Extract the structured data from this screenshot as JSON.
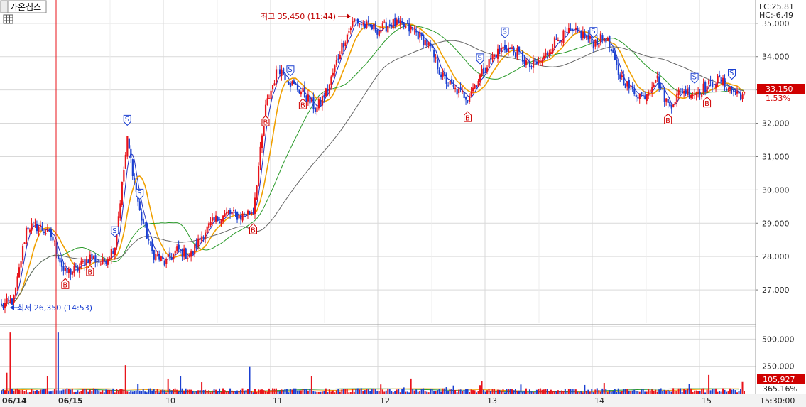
{
  "toolbar": {
    "title_button": "가온칩스"
  },
  "indicators": {
    "lc": "LC:25.81",
    "hc": "HC:-6.49",
    "lc_color": "#d00000",
    "hc_color": "#1a4fd0"
  },
  "annotations": {
    "high": "최고 35,450 (11:44)",
    "low": "최저 26,350 (14:53)"
  },
  "price_box": {
    "price": "33,150",
    "change": "1.53%",
    "color": "#d00000"
  },
  "volume_box": {
    "volume": "105,927",
    "percent": "365.16%"
  },
  "colors": {
    "up": "#e8141b",
    "down": "#1a3fd1",
    "ma_fast": "#1f2fc0",
    "ma_orange": "#f0a000",
    "ma_green": "#2a9a2a",
    "ma_gray": "#666666",
    "grid": "#d9d9d9"
  },
  "chart_data": [
    {
      "type": "candlestick",
      "title": "",
      "y_ticks": [
        "35,000",
        "34,000",
        "33,000",
        "32,000",
        "31,000",
        "30,000",
        "29,000",
        "28,000",
        "27,000"
      ],
      "ylim": [
        26000,
        35700
      ],
      "x_labels": [
        "06/14",
        "06/15",
        "10",
        "11",
        "12",
        "13",
        "14",
        "15",
        "15:30:00"
      ],
      "high": 35450,
      "low": 26350,
      "last": 33150,
      "shape": [
        [
          0,
          26500
        ],
        [
          1,
          26700
        ],
        [
          2,
          28900
        ],
        [
          3,
          28900
        ],
        [
          4,
          28600
        ],
        [
          5,
          27500
        ],
        [
          6,
          27600
        ],
        [
          7,
          28000
        ],
        [
          8,
          27800
        ],
        [
          9,
          28300
        ],
        [
          10,
          31500
        ],
        [
          11,
          29300
        ],
        [
          12,
          28100
        ],
        [
          13,
          27800
        ],
        [
          14,
          28200
        ],
        [
          15,
          28000
        ],
        [
          16,
          28700
        ],
        [
          17,
          29100
        ],
        [
          18,
          29300
        ],
        [
          19,
          29200
        ],
        [
          20,
          29400
        ],
        [
          21,
          32500
        ],
        [
          22,
          33700
        ],
        [
          23,
          33200
        ],
        [
          24,
          32900
        ],
        [
          25,
          32400
        ],
        [
          26,
          33100
        ],
        [
          27,
          34300
        ],
        [
          28,
          35100
        ],
        [
          29,
          34900
        ],
        [
          30,
          34800
        ],
        [
          31,
          35000
        ],
        [
          32,
          34900
        ],
        [
          33,
          34700
        ],
        [
          34,
          34300
        ],
        [
          35,
          33400
        ],
        [
          36,
          33000
        ],
        [
          37,
          32800
        ],
        [
          38,
          33400
        ],
        [
          39,
          34000
        ],
        [
          40,
          34300
        ],
        [
          41,
          34100
        ],
        [
          42,
          33700
        ],
        [
          43,
          33900
        ],
        [
          44,
          34500
        ],
        [
          45,
          34700
        ],
        [
          46,
          34700
        ],
        [
          47,
          34400
        ],
        [
          48,
          34600
        ],
        [
          49,
          33500
        ],
        [
          50,
          33000
        ],
        [
          51,
          32800
        ],
        [
          52,
          33400
        ],
        [
          53,
          32500
        ],
        [
          54,
          33000
        ],
        [
          55,
          32900
        ],
        [
          56,
          33100
        ],
        [
          57,
          33300
        ],
        [
          58,
          33000
        ],
        [
          59,
          32800
        ]
      ],
      "signals": [
        {
          "kind": "B",
          "bar": 5,
          "label": "B"
        },
        {
          "kind": "B",
          "bar": 7,
          "label": "B"
        },
        {
          "kind": "S",
          "bar": 9,
          "label": "S"
        },
        {
          "kind": "S",
          "bar": 10,
          "label": "S"
        },
        {
          "kind": "S",
          "bar": 11,
          "label": "S"
        },
        {
          "kind": "B",
          "bar": 20,
          "label": "B"
        },
        {
          "kind": "B",
          "bar": 21,
          "label": "B"
        },
        {
          "kind": "S",
          "bar": 23,
          "label": "S"
        },
        {
          "kind": "B",
          "bar": 24,
          "label": "B"
        },
        {
          "kind": "S",
          "bar": 38,
          "label": "S"
        },
        {
          "kind": "B",
          "bar": 37,
          "label": "B"
        },
        {
          "kind": "S",
          "bar": 40,
          "label": "S"
        },
        {
          "kind": "S",
          "bar": 47,
          "label": "S"
        },
        {
          "kind": "B",
          "bar": 53,
          "label": "B"
        },
        {
          "kind": "S",
          "bar": 55,
          "label": "S"
        },
        {
          "kind": "B",
          "bar": 56,
          "label": "B"
        },
        {
          "kind": "S",
          "bar": 58,
          "label": "S"
        }
      ]
    },
    {
      "type": "bar",
      "title": "",
      "y_ticks": [
        "500,000",
        "250,000"
      ],
      "ylim": [
        0,
        600000
      ],
      "note": "volume"
    }
  ]
}
